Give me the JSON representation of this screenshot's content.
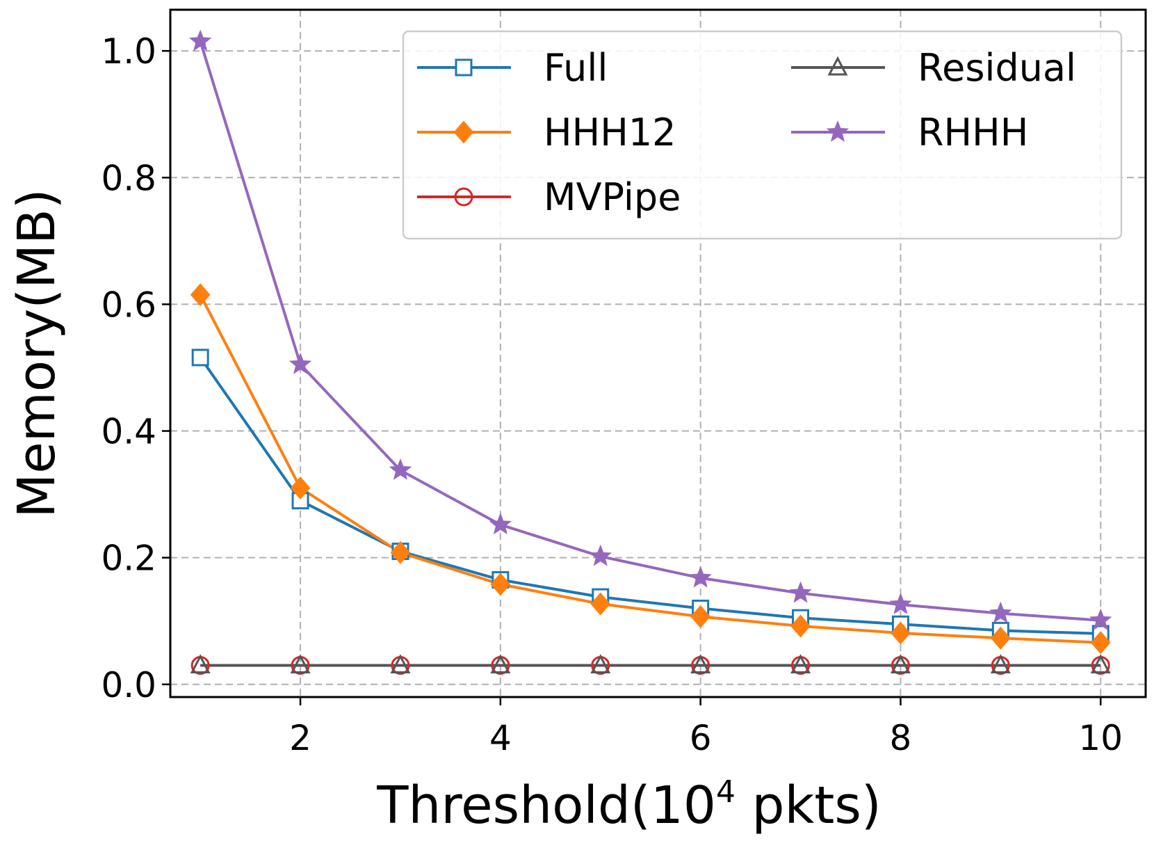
{
  "chart_data": {
    "type": "line",
    "xlabel": "Threshold(10",
    "xlabel_sup": "4",
    "xlabel_tail": " pkts)",
    "ylabel": "Memory(MB)",
    "x": [
      1,
      2,
      3,
      4,
      5,
      6,
      7,
      8,
      9,
      10
    ],
    "xlim": [
      0.7,
      10.45
    ],
    "ylim": [
      -0.02,
      1.065
    ],
    "xticks": [
      2,
      4,
      6,
      8,
      10
    ],
    "yticks": [
      0.0,
      0.2,
      0.4,
      0.6,
      0.8,
      1.0
    ],
    "xtick_labels": [
      "2",
      "4",
      "6",
      "8",
      "10"
    ],
    "ytick_labels": [
      "0.0",
      "0.2",
      "0.4",
      "0.6",
      "0.8",
      "1.0"
    ],
    "grid": true,
    "legend_position": "top-right",
    "legend_columns": 2,
    "series": [
      {
        "name": "Full",
        "color": "#1f77b4",
        "marker": "square-open",
        "values": [
          0.516,
          0.29,
          0.21,
          0.165,
          0.138,
          0.12,
          0.105,
          0.095,
          0.085,
          0.08
        ]
      },
      {
        "name": "HHH12",
        "color": "#ff7f0e",
        "marker": "diamond-filled",
        "values": [
          0.615,
          0.31,
          0.208,
          0.158,
          0.127,
          0.107,
          0.092,
          0.081,
          0.073,
          0.066
        ]
      },
      {
        "name": "MVPipe",
        "color": "#d62728",
        "marker": "circle-open",
        "values": [
          0.03,
          0.03,
          0.03,
          0.03,
          0.03,
          0.03,
          0.03,
          0.03,
          0.03,
          0.03
        ]
      },
      {
        "name": "Residual",
        "color": "#555555",
        "marker": "triangle-open",
        "values": [
          0.03,
          0.03,
          0.03,
          0.03,
          0.03,
          0.03,
          0.03,
          0.03,
          0.03,
          0.03
        ]
      },
      {
        "name": "RHHH",
        "color": "#9467bd",
        "marker": "star-filled",
        "values": [
          1.015,
          0.505,
          0.338,
          0.252,
          0.202,
          0.168,
          0.144,
          0.126,
          0.112,
          0.101
        ]
      }
    ]
  }
}
